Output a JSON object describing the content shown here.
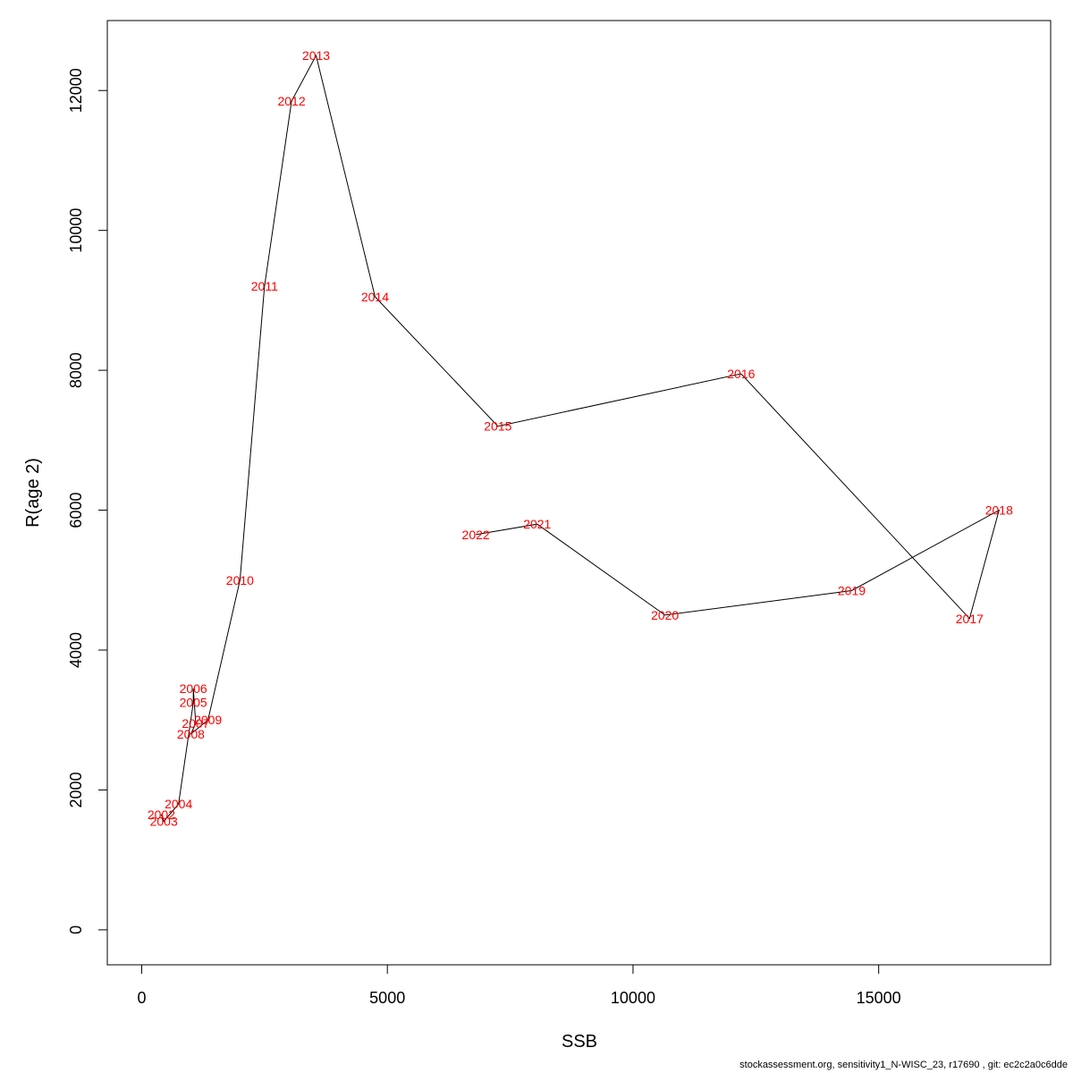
{
  "chart_data": {
    "type": "line",
    "xlabel": "SSB",
    "ylabel": "R(age 2)",
    "xlim": [
      -700,
      18500
    ],
    "ylim": [
      -500,
      13000
    ],
    "x_ticks": [
      0,
      5000,
      10000,
      15000
    ],
    "y_ticks": [
      0,
      2000,
      4000,
      6000,
      8000,
      10000,
      12000
    ],
    "grid": false,
    "label_color": "#ff0000",
    "line_color": "#000000",
    "points": [
      {
        "label": "2002",
        "x": 400,
        "y": 1650
      },
      {
        "label": "2003",
        "x": 450,
        "y": 1550
      },
      {
        "label": "2004",
        "x": 750,
        "y": 1800
      },
      {
        "label": "2005",
        "x": 1050,
        "y": 3250
      },
      {
        "label": "2006",
        "x": 1050,
        "y": 3450
      },
      {
        "label": "2007",
        "x": 1100,
        "y": 2950
      },
      {
        "label": "2008",
        "x": 1000,
        "y": 2800
      },
      {
        "label": "2009",
        "x": 1350,
        "y": 3000
      },
      {
        "label": "2010",
        "x": 2000,
        "y": 5000
      },
      {
        "label": "2011",
        "x": 2500,
        "y": 9200
      },
      {
        "label": "2012",
        "x": 3050,
        "y": 11850
      },
      {
        "label": "2013",
        "x": 3550,
        "y": 12500
      },
      {
        "label": "2014",
        "x": 4750,
        "y": 9050
      },
      {
        "label": "2015",
        "x": 7250,
        "y": 7200
      },
      {
        "label": "2016",
        "x": 12200,
        "y": 7950
      },
      {
        "label": "2017",
        "x": 16850,
        "y": 4450
      },
      {
        "label": "2018",
        "x": 17450,
        "y": 6000
      },
      {
        "label": "2019",
        "x": 14450,
        "y": 4850
      },
      {
        "label": "2020",
        "x": 10650,
        "y": 4500
      },
      {
        "label": "2021",
        "x": 8050,
        "y": 5800
      },
      {
        "label": "2022",
        "x": 6800,
        "y": 5650
      }
    ]
  },
  "footer": "stockassessment.org, sensitivity1_N-WISC_23, r17690 , git: ec2c2a0c6dde"
}
